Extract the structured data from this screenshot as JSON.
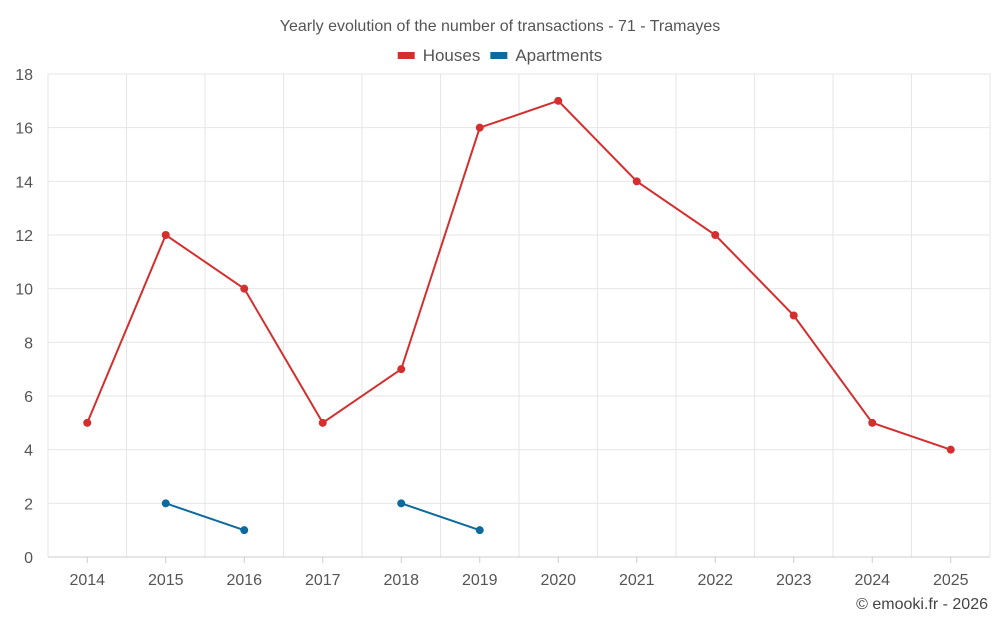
{
  "chart_data": {
    "type": "line",
    "title": "Yearly evolution of the number of transactions - 71 - Tramayes",
    "categories": [
      "2014",
      "2015",
      "2016",
      "2017",
      "2018",
      "2019",
      "2020",
      "2021",
      "2022",
      "2023",
      "2024",
      "2025"
    ],
    "series": [
      {
        "name": "Houses",
        "color": "#d32f2f",
        "values": [
          5,
          12,
          10,
          5,
          7,
          16,
          17,
          14,
          12,
          9,
          5,
          4
        ]
      },
      {
        "name": "Apartments",
        "color": "#0d6a9c",
        "values": [
          null,
          2,
          1,
          null,
          2,
          1,
          null,
          null,
          null,
          null,
          null,
          null
        ]
      }
    ],
    "ylim": [
      0,
      18
    ],
    "yticks": [
      "0",
      "2",
      "4",
      "6",
      "8",
      "10",
      "12",
      "14",
      "16",
      "18"
    ],
    "xlabel": "",
    "ylabel": "",
    "grid": true,
    "legend": "top-center"
  },
  "credit": "© emooki.fr - 2026"
}
